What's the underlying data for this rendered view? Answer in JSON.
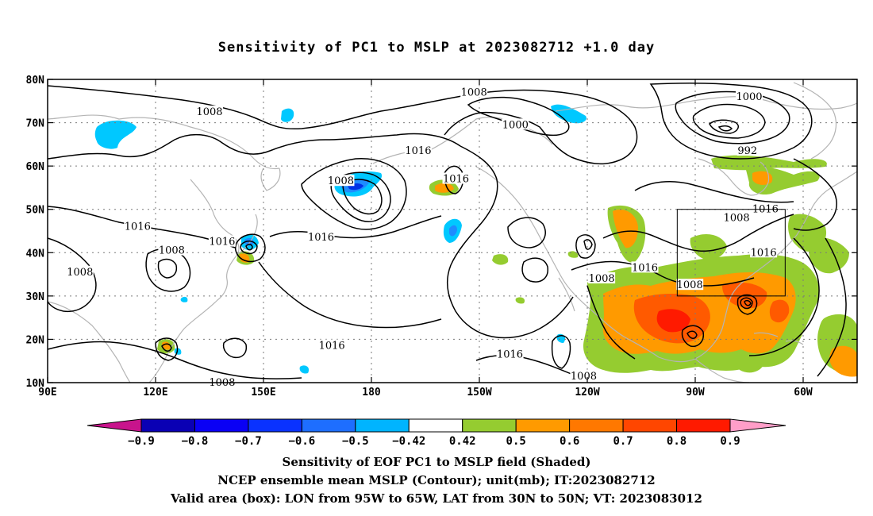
{
  "title": "Sensitivity of PC1 to MSLP at 2023082712 +1.0 day",
  "colors": {
    "frame": "#000000",
    "coast": "#b4b4b4",
    "grid": "#7a7a7a",
    "contour": "#000000",
    "box": "#000000",
    "shade_pos_light": "#95cc30",
    "shade_pos_mid": "#ff9a00",
    "shade_pos_high": "#ff5a00",
    "shade_pos_max": "#ff1a00",
    "shade_neg_light": "#00c8ff",
    "shade_neg_mid": "#1e8cff",
    "shade_neg_high": "#0032e6"
  },
  "axes": {
    "y_ticks": [
      "80N",
      "70N",
      "60N",
      "50N",
      "40N",
      "30N",
      "20N",
      "10N"
    ],
    "x_ticks": [
      "90E",
      "120E",
      "150E",
      "180",
      "150W",
      "120W",
      "90W",
      "60W"
    ]
  },
  "contour_labels": [
    {
      "text": "1008",
      "lon": 135.0,
      "lat": 72.5
    },
    {
      "text": "1008",
      "lon": -151.5,
      "lat": 77.0
    },
    {
      "text": "1000",
      "lon": -140.0,
      "lat": 69.5
    },
    {
      "text": "1016",
      "lon": -167.0,
      "lat": 63.5
    },
    {
      "text": "1016",
      "lon": -156.5,
      "lat": 57.0
    },
    {
      "text": "1000",
      "lon": -75.0,
      "lat": 76.0
    },
    {
      "text": "992",
      "lon": -75.5,
      "lat": 63.5
    },
    {
      "text": "1008",
      "lon": 171.5,
      "lat": 56.5
    },
    {
      "text": "1008",
      "lon": -78.5,
      "lat": 48.0
    },
    {
      "text": "1016",
      "lon": -70.5,
      "lat": 50.0
    },
    {
      "text": "1016",
      "lon": 115.0,
      "lat": 46.0
    },
    {
      "text": "1016",
      "lon": 138.5,
      "lat": 42.5
    },
    {
      "text": "1008",
      "lon": 124.5,
      "lat": 40.5
    },
    {
      "text": "1016",
      "lon": 166.0,
      "lat": 43.5
    },
    {
      "text": "1008",
      "lon": 99.0,
      "lat": 35.5
    },
    {
      "text": "1016",
      "lon": -104.0,
      "lat": 36.5
    },
    {
      "text": "1016",
      "lon": -71.0,
      "lat": 40.0
    },
    {
      "text": "1008",
      "lon": -116.0,
      "lat": 34.0
    },
    {
      "text": "1008",
      "lon": -91.5,
      "lat": 32.5
    },
    {
      "text": "1016",
      "lon": 169.0,
      "lat": 18.5
    },
    {
      "text": "1016",
      "lon": -141.5,
      "lat": 16.5
    },
    {
      "text": "1008",
      "lon": -121.0,
      "lat": 11.5
    },
    {
      "text": "1008",
      "lon": 138.5,
      "lat": 10.0
    }
  ],
  "colorbar": {
    "labels": [
      "−0.9",
      "−0.8",
      "−0.7",
      "−0.6",
      "−0.5",
      "−0.42",
      "0.42",
      "0.5",
      "0.6",
      "0.7",
      "0.8",
      "0.9"
    ],
    "colors": [
      "#0a00b4",
      "#0a00f5",
      "#0a32ff",
      "#1e6eff",
      "#00b4ff",
      "#ffffff",
      "#95cc30",
      "#ff9a00",
      "#ff7800",
      "#ff4600",
      "#ff1a00"
    ],
    "low_color": "#c8148c",
    "high_color": "#ff9ec8"
  },
  "footer": {
    "line1": "Sensitivity of EOF PC1 to MSLP field (Shaded)",
    "line2": "NCEP ensemble mean MSLP (Contour); unit(mb); IT:2023082712",
    "line3": "Valid area (box): LON from 95W to 65W, LAT from 30N to 50N; VT: 2023083012"
  },
  "valid_box": {
    "lon_min": -95,
    "lon_max": -65,
    "lat_min": 30,
    "lat_max": 50
  }
}
